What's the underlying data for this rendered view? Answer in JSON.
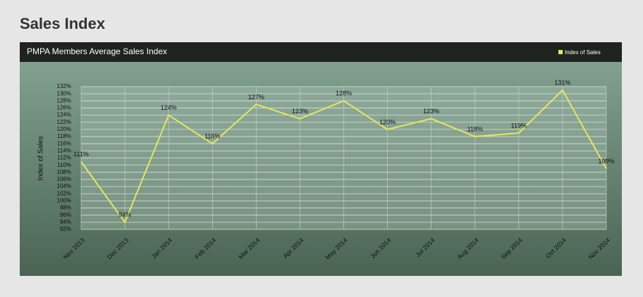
{
  "header": {
    "title": "Sales Index"
  },
  "chart_data": {
    "type": "line",
    "title": "PMPA Members Average Sales Index",
    "y_label": "Index of Sales",
    "categories": [
      "Nov 2013",
      "Dec 2013",
      "Jan 2014",
      "Feb 2014",
      "Mar 2014",
      "Apr 2014",
      "May 2014",
      "Jun 2014",
      "Jul 2014",
      "Aug 2014",
      "Sep 2014",
      "Oct 2014",
      "Nov 2014"
    ],
    "series": [
      {
        "name": "Index of Sales",
        "color": "#e6e65a",
        "values": [
          111,
          94,
          124,
          116,
          127,
          123,
          128,
          120,
          123,
          118,
          119,
          131,
          109
        ],
        "value_labels": [
          "111%",
          "94%",
          "124%",
          "116%",
          "127%",
          "123%",
          "128%",
          "120%",
          "123%",
          "118%",
          "119%",
          "131%",
          "109%"
        ]
      }
    ],
    "ylim": [
      92,
      132
    ],
    "yticks": [
      {
        "value": 92,
        "label": "92%"
      },
      {
        "value": 94,
        "label": "94%"
      },
      {
        "value": 96,
        "label": "96%"
      },
      {
        "value": 98,
        "label": "98%"
      },
      {
        "value": 100,
        "label": "100%"
      },
      {
        "value": 102,
        "label": "102%"
      },
      {
        "value": 104,
        "label": "104%"
      },
      {
        "value": 106,
        "label": "106%"
      },
      {
        "value": 108,
        "label": "108%"
      },
      {
        "value": 110,
        "label": "110%"
      },
      {
        "value": 112,
        "label": "112%"
      },
      {
        "value": 114,
        "label": "114%"
      },
      {
        "value": 116,
        "label": "116%"
      },
      {
        "value": 118,
        "label": "118%"
      },
      {
        "value": 120,
        "label": "120%"
      },
      {
        "value": 122,
        "label": "122%"
      },
      {
        "value": 124,
        "label": "124%"
      },
      {
        "value": 126,
        "label": "126%"
      },
      {
        "value": 128,
        "label": "128%"
      },
      {
        "value": 130,
        "label": "130%"
      },
      {
        "value": 132,
        "label": "132%"
      }
    ],
    "grid": true,
    "legend": "top-right"
  }
}
